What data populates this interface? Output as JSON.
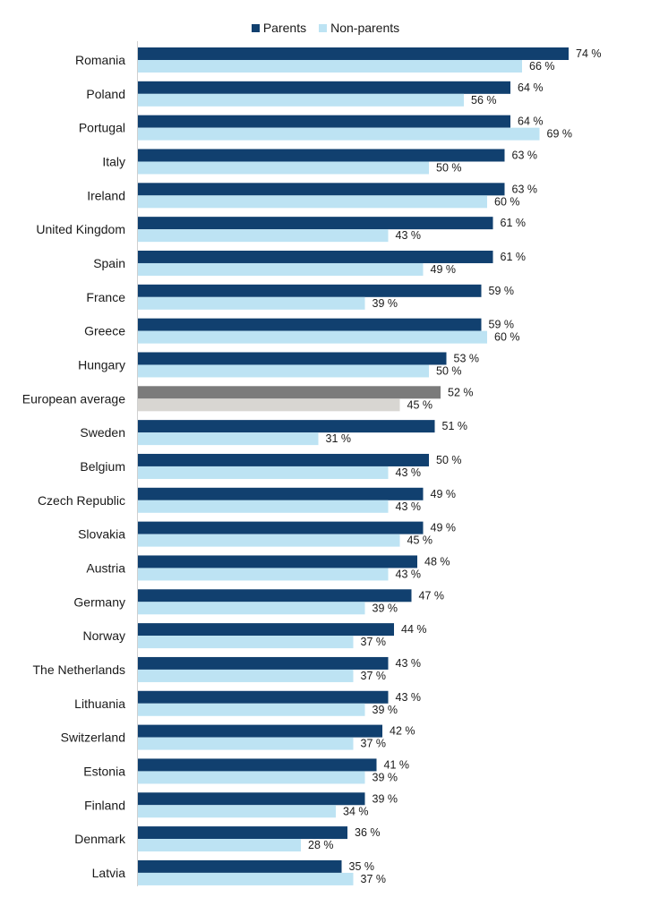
{
  "chart_data": {
    "type": "bar",
    "orientation": "horizontal",
    "legend": {
      "placement": "top-center"
    },
    "unit": "%",
    "categories": [
      "Romania",
      "Poland",
      "Portugal",
      "Italy",
      "Ireland",
      "United Kingdom",
      "Spain",
      "France",
      "Greece",
      "Hungary",
      "European average",
      "Sweden",
      "Belgium",
      "Czech Republic",
      "Slovakia",
      "Austria",
      "Germany",
      "Norway",
      "The Netherlands",
      "Lithuania",
      "Switzerland",
      "Estonia",
      "Finland",
      "Denmark",
      "Latvia"
    ],
    "series": [
      {
        "name": "Parents",
        "color": "#11406f",
        "values": [
          74,
          64,
          64,
          63,
          63,
          61,
          61,
          59,
          59,
          53,
          52,
          51,
          50,
          49,
          49,
          48,
          47,
          44,
          43,
          43,
          42,
          41,
          39,
          36,
          35
        ]
      },
      {
        "name": "Non-parents",
        "color": "#bde3f3",
        "values": [
          66,
          56,
          69,
          50,
          60,
          43,
          49,
          39,
          60,
          50,
          45,
          31,
          43,
          43,
          45,
          43,
          39,
          37,
          37,
          39,
          37,
          39,
          34,
          28,
          37
        ]
      }
    ],
    "highlight": {
      "category": "European average",
      "colors": [
        "#7b7b7b",
        "#d8d6d2"
      ]
    },
    "xlim": [
      0,
      100
    ],
    "grid": false
  }
}
